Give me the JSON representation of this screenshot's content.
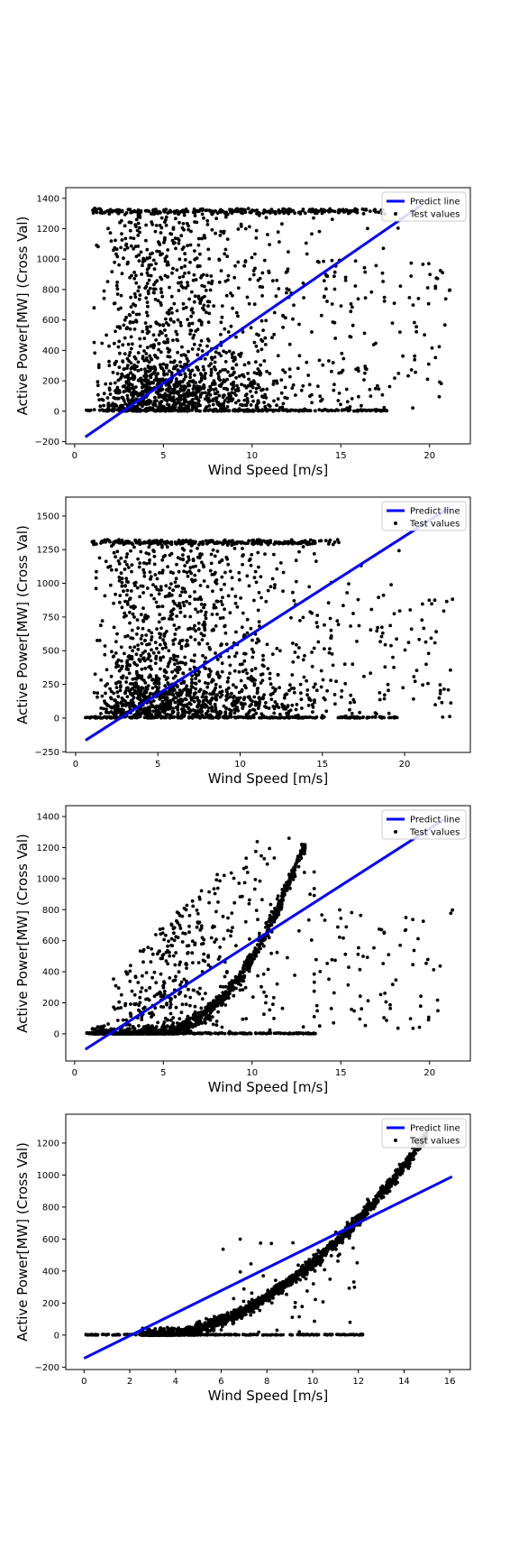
{
  "chart_data": [
    {
      "type": "scatter",
      "xlabel": "Wind Speed [m/s]",
      "ylabel": "Active Power[MW] (Cross Val)",
      "xlim": [
        -0.5,
        22.3
      ],
      "ylim": [
        -215,
        1470
      ],
      "xticks": [
        0,
        5,
        10,
        15,
        20
      ],
      "yticks": [
        -200,
        0,
        200,
        400,
        600,
        800,
        1000,
        1200,
        1400
      ],
      "legend": "top-right",
      "grid": false,
      "series": [
        {
          "name": "Predict line",
          "kind": "line",
          "color": "#0000ff",
          "x": [
            0.6,
            19.6
          ],
          "y": [
            -170,
            1360
          ]
        },
        {
          "name": "Test values",
          "kind": "scatter",
          "color": "#000000",
          "points_hint": "dense cloud 0.6-21 m/s, 0-1330 MW; band of points at 0 MW and at rated power ~1320 MW",
          "x_range": [
            0.6,
            21.2
          ],
          "y_range": [
            0,
            1335
          ],
          "rated": 1320
        }
      ]
    },
    {
      "type": "scatter",
      "xlabel": "Wind Speed [m/s]",
      "ylabel": "Active Power[MW] (Cross Val)",
      "xlim": [
        -0.6,
        24.0
      ],
      "ylim": [
        -255,
        1640
      ],
      "xticks": [
        0,
        5,
        10,
        15,
        20
      ],
      "yticks": [
        -250,
        0,
        250,
        500,
        750,
        1000,
        1250,
        1500
      ],
      "legend": "top-right",
      "grid": false,
      "series": [
        {
          "name": "Predict line",
          "kind": "line",
          "color": "#0000ff",
          "x": [
            0.6,
            22.7
          ],
          "y": [
            -165,
            1560
          ]
        },
        {
          "name": "Test values",
          "kind": "scatter",
          "color": "#000000",
          "x_range": [
            0.6,
            23.0
          ],
          "y_range": [
            0,
            1335
          ],
          "rated": 1310
        }
      ]
    },
    {
      "type": "scatter",
      "xlabel": "Wind Speed [m/s]",
      "ylabel": "Active Power[MW] (Cross Val)",
      "xlim": [
        -0.5,
        22.3
      ],
      "ylim": [
        -175,
        1470
      ],
      "xticks": [
        0,
        5,
        10,
        15,
        20
      ],
      "yticks": [
        0,
        200,
        400,
        600,
        800,
        1000,
        1200,
        1400
      ],
      "legend": "top-right",
      "grid": false,
      "series": [
        {
          "name": "Predict line",
          "kind": "line",
          "color": "#0000ff",
          "x": [
            0.6,
            20.8
          ],
          "y": [
            -100,
            1380
          ]
        },
        {
          "name": "Test values",
          "kind": "scatter",
          "color": "#000000",
          "x_range": [
            0.6,
            21.4
          ],
          "y_range": [
            0,
            1280
          ],
          "curve_end_x": 13
        }
      ]
    },
    {
      "type": "scatter",
      "xlabel": "Wind Speed [m/s]",
      "ylabel": "Active Power[MW] (Cross Val)",
      "xlim": [
        -0.8,
        16.9
      ],
      "ylim": [
        -215,
        1380
      ],
      "xticks": [
        0,
        2,
        4,
        6,
        8,
        10,
        12,
        14,
        16
      ],
      "yticks": [
        -200,
        0,
        200,
        400,
        600,
        800,
        1000,
        1200
      ],
      "legend": "top-right",
      "grid": false,
      "series": [
        {
          "name": "Predict line",
          "kind": "line",
          "color": "#0000ff",
          "x": [
            0.0,
            16.1
          ],
          "y": [
            -145,
            990
          ]
        },
        {
          "name": "Test values",
          "kind": "scatter",
          "color": "#000000",
          "x_range": [
            0.0,
            15.0
          ],
          "y_range": [
            0,
            1250
          ],
          "curve_end_x": 15
        }
      ]
    }
  ]
}
